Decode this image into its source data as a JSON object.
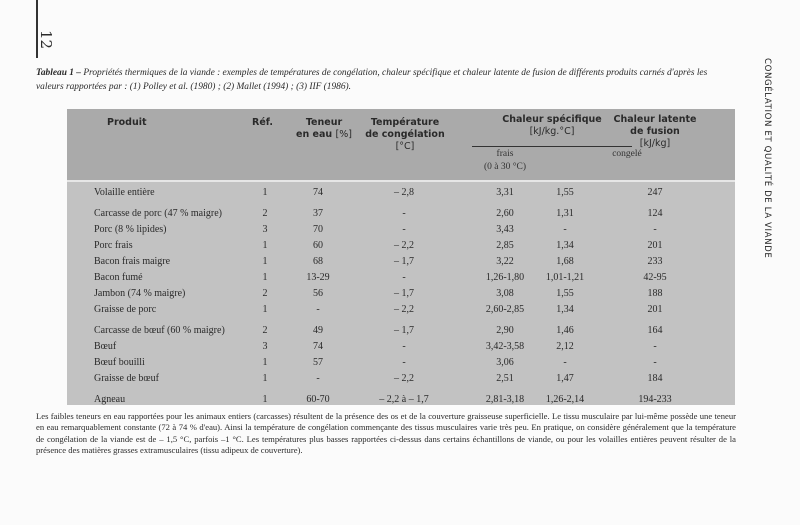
{
  "page_number": "12",
  "running_head": "CONGÉLATION ET QUALITÉ DE LA VIANDE",
  "caption": {
    "label": "Tableau 1 –",
    "text": "Propriétés thermiques de la viande : exemples de températures de congélation, chaleur spécifique et chaleur latente de fusion de différents produits carnés d'après les valeurs rapportées par : (1) Polley et al. (1980) ; (2) Mallet (1994) ; (3) IIF (1986)."
  },
  "table": {
    "headers": {
      "produit": "Produit",
      "ref": "Réf.",
      "teneur": "Teneur",
      "teneur_unit_prefix": "en eau",
      "teneur_unit": "[%]",
      "temp_line1": "Température",
      "temp_line2": "de congélation",
      "temp_unit": "[°C]",
      "chaleur_spec": "Chaleur spécifique",
      "chaleur_spec_unit": "[kJ/kg.°C]",
      "frais": "frais",
      "frais_range": "(0 à 30 °C)",
      "congele": "congelé",
      "latente_line1": "Chaleur latente",
      "latente_line2": "de fusion",
      "latente_unit": "[kJ/kg]"
    },
    "rows": [
      [
        "Volaille entière",
        "1",
        "74",
        "– 2,8",
        "3,31",
        "1,55",
        "247"
      ],
      [
        "Carcasse de porc (47 % maigre)",
        "2",
        "37",
        "-",
        "2,60",
        "1,31",
        "124"
      ],
      [
        "Porc (8 % lipides)",
        "3",
        "70",
        "-",
        "3,43",
        "-",
        "-"
      ],
      [
        "Porc frais",
        "1",
        "60",
        "– 2,2",
        "2,85",
        "1,34",
        "201"
      ],
      [
        "Bacon frais maigre",
        "1",
        "68",
        "– 1,7",
        "3,22",
        "1,68",
        "233"
      ],
      [
        "Bacon fumé",
        "1",
        "13-29",
        "-",
        "1,26-1,80",
        "1,01-1,21",
        "42-95"
      ],
      [
        "Jambon (74 % maigre)",
        "2",
        "56",
        "– 1,7",
        "3,08",
        "1,55",
        "188"
      ],
      [
        "Graisse de porc",
        "1",
        "-",
        "– 2,2",
        "2,60-2,85",
        "1,34",
        "201"
      ],
      [
        "Carcasse de bœuf (60 % maigre)",
        "2",
        "49",
        "– 1,7",
        "2,90",
        "1,46",
        "164"
      ],
      [
        "Bœuf",
        "3",
        "74",
        "-",
        "3,42-3,58",
        "2,12",
        "-"
      ],
      [
        "Bœuf bouilli",
        "1",
        "57",
        "-",
        "3,06",
        "-",
        "-"
      ],
      [
        "Graisse de bœuf",
        "1",
        "-",
        "– 2,2",
        "2,51",
        "1,47",
        "184"
      ],
      [
        "Agneau",
        "1",
        "60-70",
        "– 2,2 à – 1,7",
        "2,81-3,18",
        "1,26-2,14",
        "194-233"
      ]
    ]
  },
  "footnote": "Les faibles teneurs en eau rapportées pour les animaux entiers (carcasses) résultent de la présence des os et de la couverture graisseuse superficielle. Le tissu musculaire par lui-même possède une teneur en eau remarquablement constante (72 à 74 % d'eau). Ainsi la température de congélation commençante des tissus musculaires varie très peu. En pratique, on considère généralement que la température de congélation de la viande est de – 1,5 °C, parfois  –1 °C. Les températures plus basses rapportées ci-dessus dans certains échantillons de viande, ou pour les volailles entières peuvent résulter de la présence des matières grasses extramusculaires (tissu adipeux de couverture)."
}
